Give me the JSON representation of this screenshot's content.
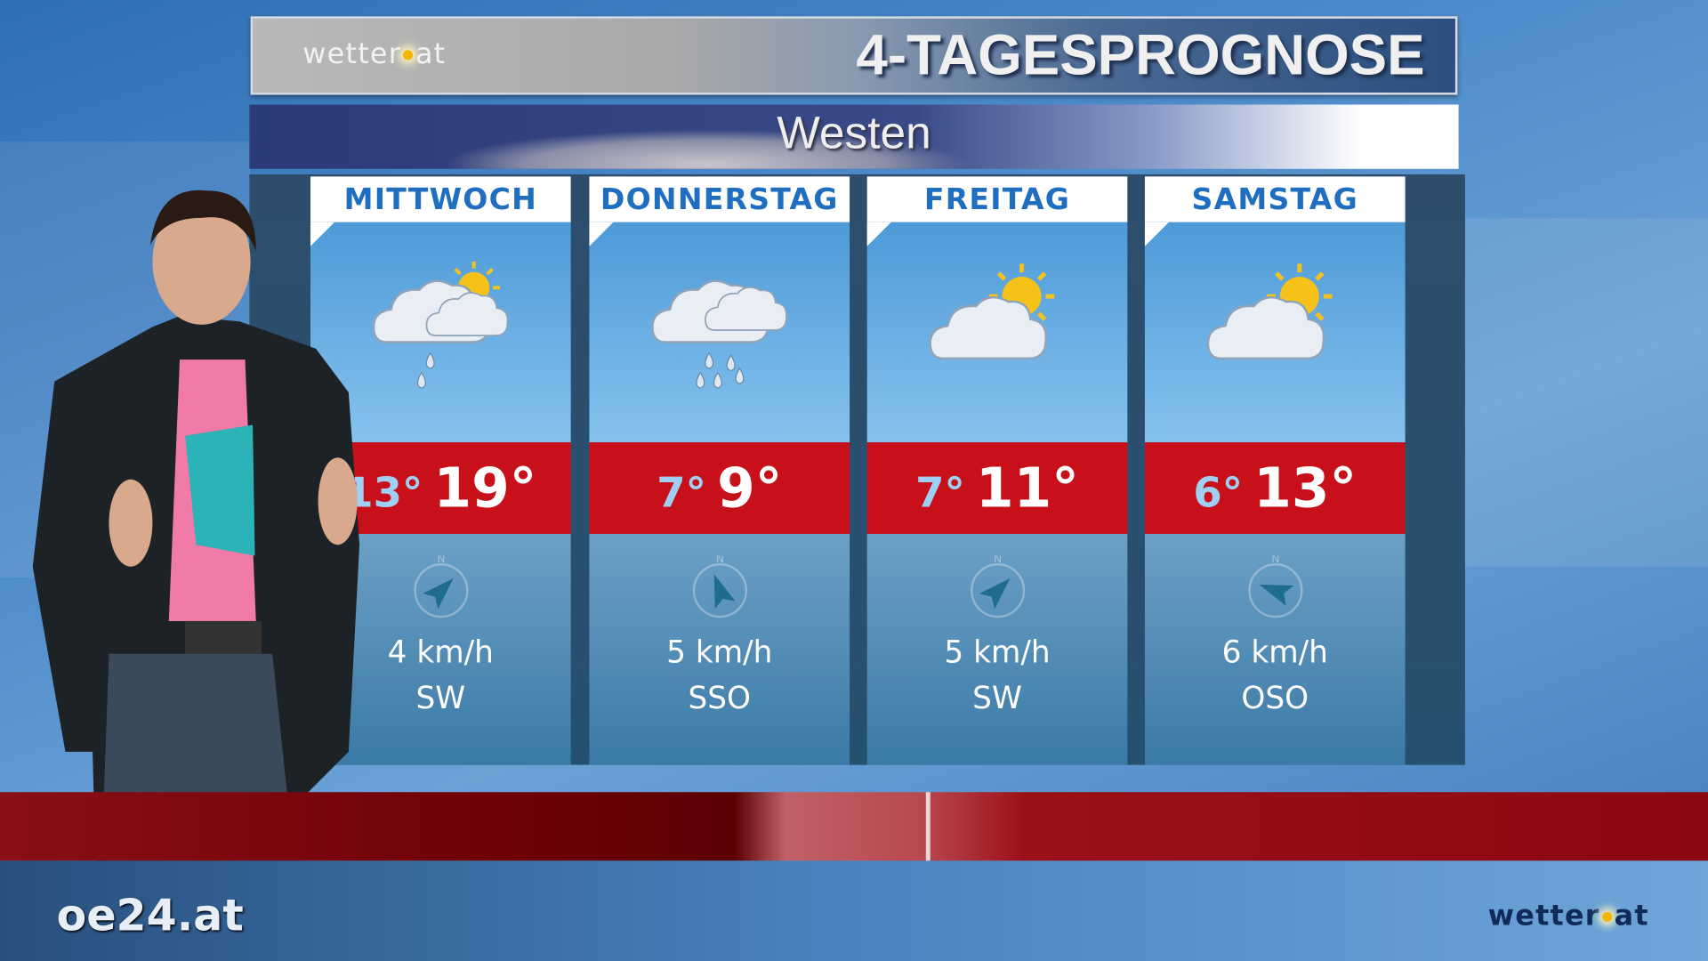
{
  "header": {
    "logo": "wetter.at",
    "title": "4-TAGESPROGNOSE"
  },
  "region": "Westen",
  "days": [
    {
      "name": "MITTWOCH",
      "icon": "cloud-sun-rain-icon",
      "min": "13°",
      "max": "19°",
      "wind_speed": "4 km/h",
      "wind_dir": "SW"
    },
    {
      "name": "DONNERSTAG",
      "icon": "cloud-rain-icon",
      "min": "7°",
      "max": "9°",
      "wind_speed": "5 km/h",
      "wind_dir": "SSO"
    },
    {
      "name": "FREITAG",
      "icon": "sun-cloud-icon",
      "min": "7°",
      "max": "11°",
      "wind_speed": "5 km/h",
      "wind_dir": "SW"
    },
    {
      "name": "SAMSTAG",
      "icon": "sun-cloud-icon",
      "min": "6°",
      "max": "13°",
      "wind_speed": "6 km/h",
      "wind_dir": "OSO"
    }
  ],
  "compass_north": "N",
  "footer": {
    "logo": "wetter.at",
    "channel_logo": "oe24.at"
  },
  "colors": {
    "temp_band": "#c8101a",
    "day_header_text": "#1f6ec0",
    "min_temp": "#9fd0f4"
  }
}
